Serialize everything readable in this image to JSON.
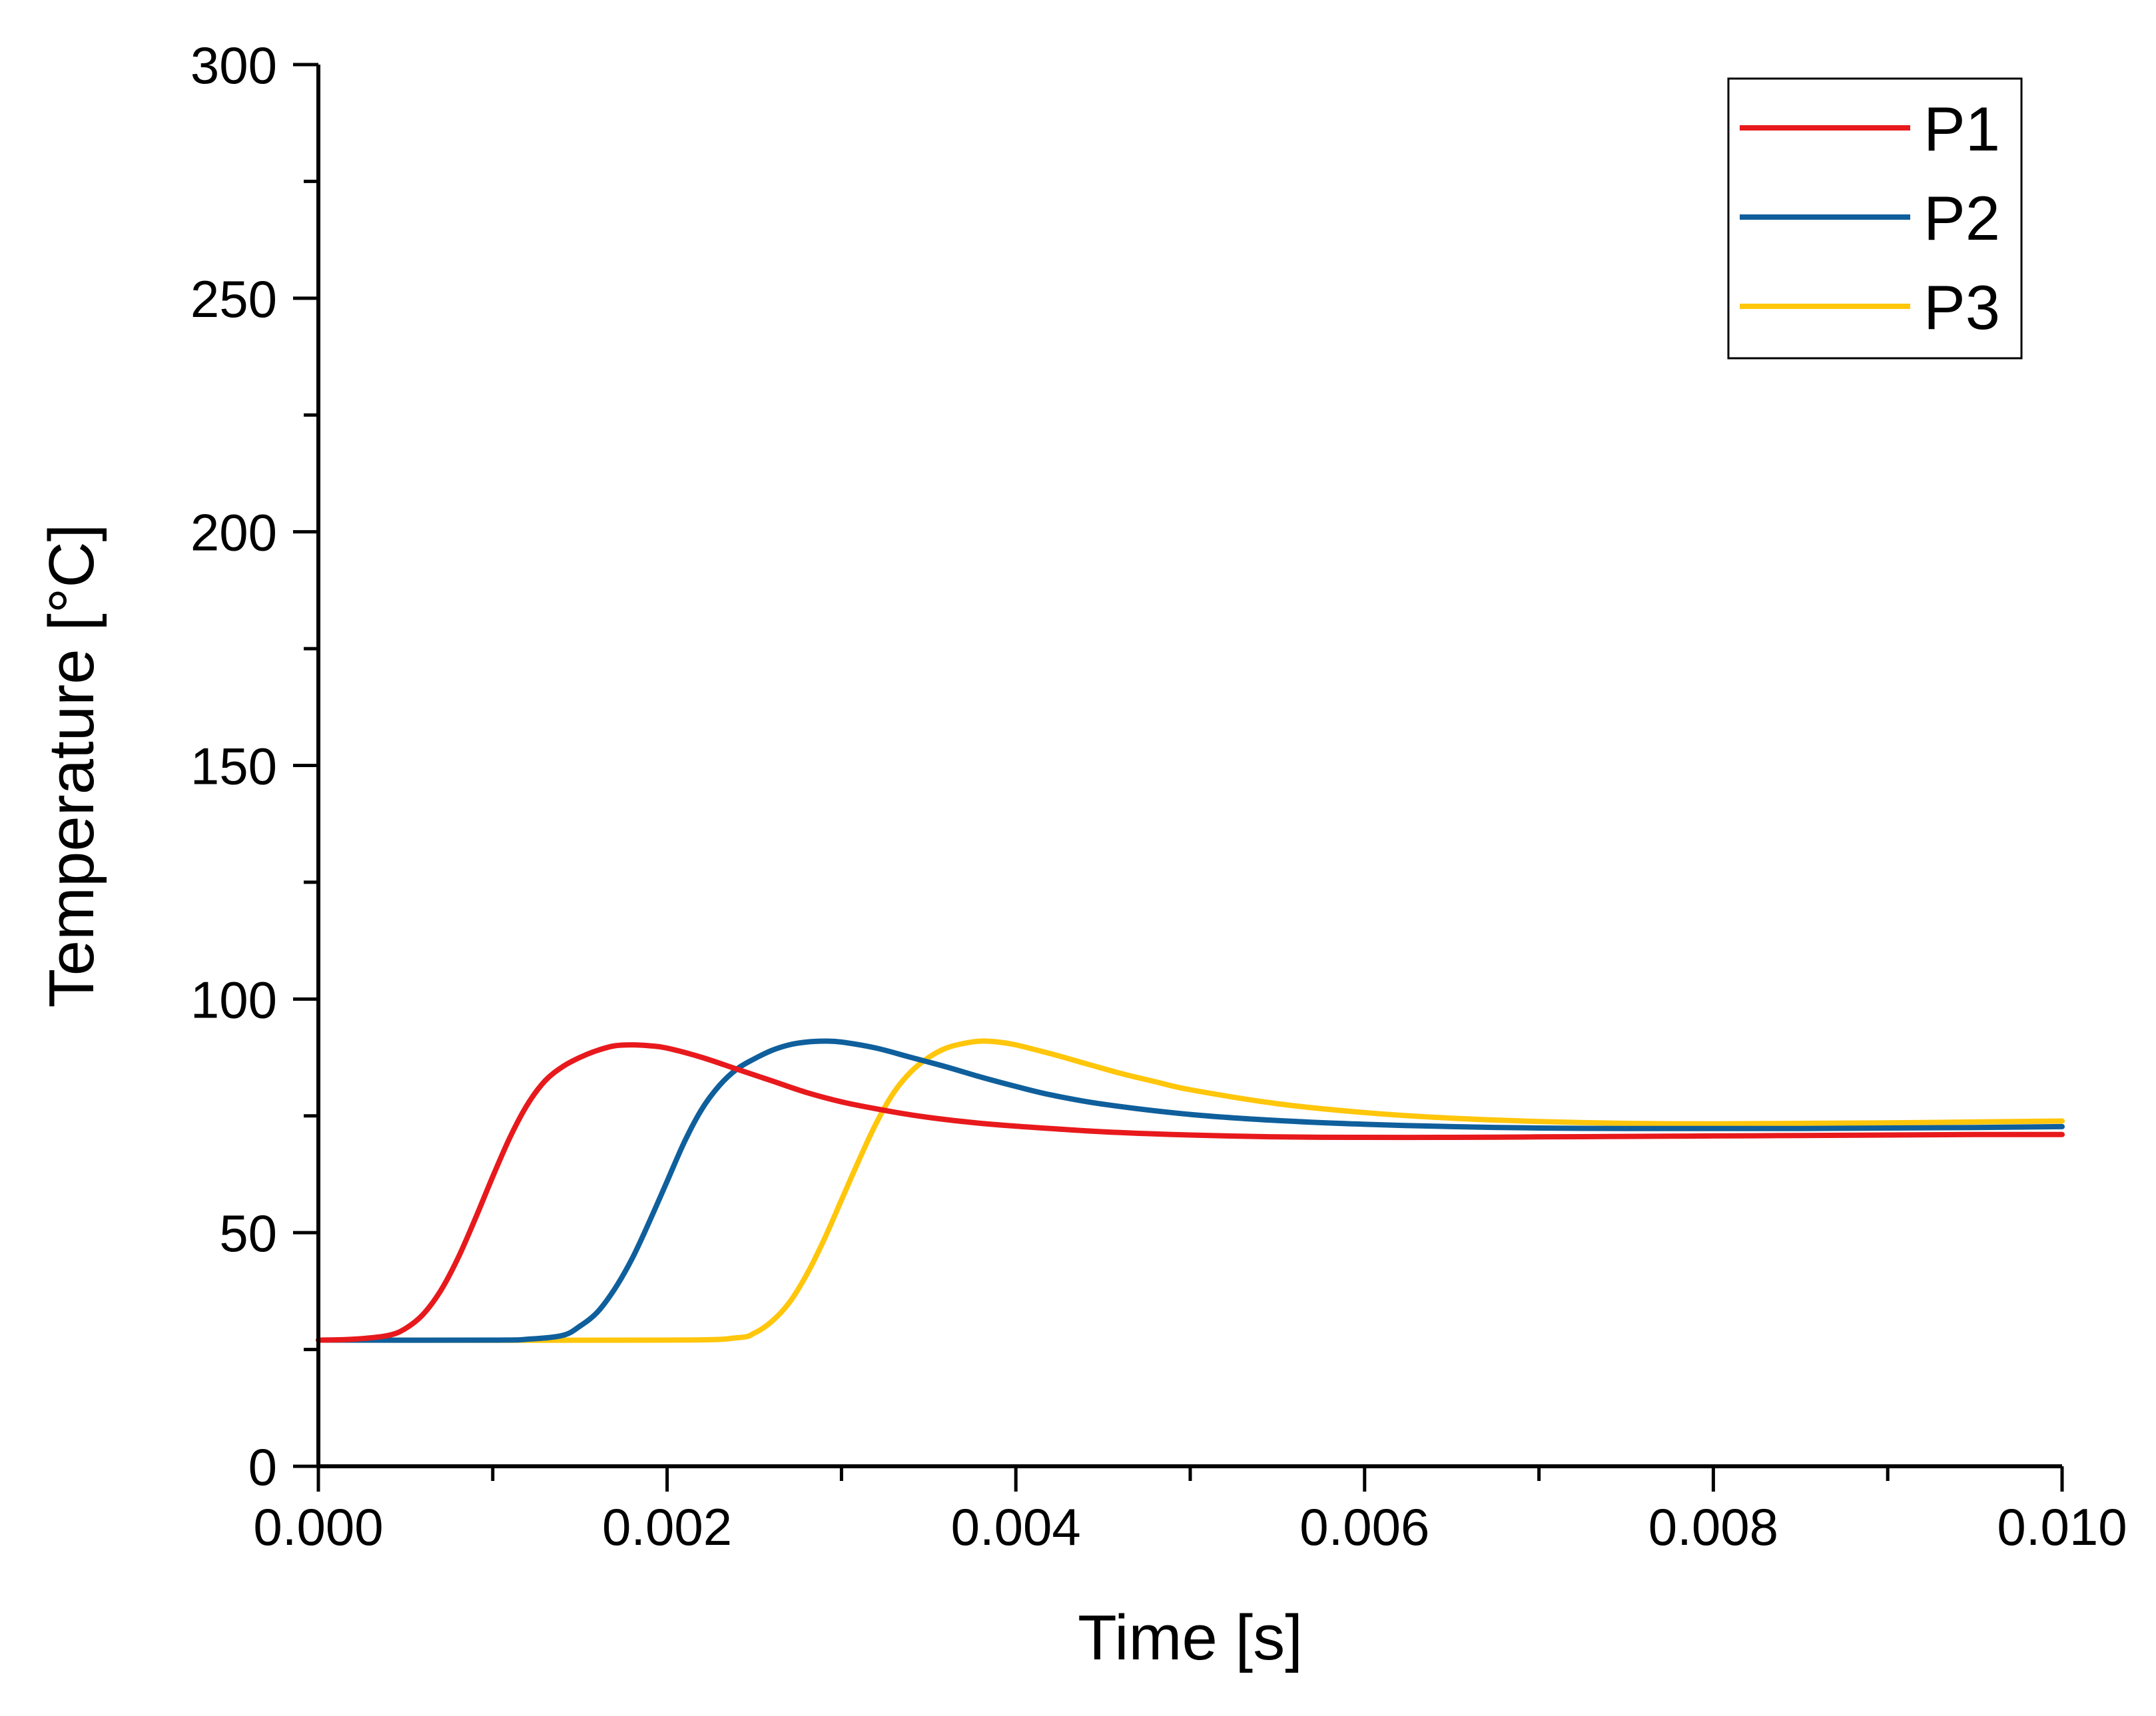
{
  "chart_data": {
    "type": "line",
    "title": "",
    "xlabel": "Time [s]",
    "ylabel": "Temperature [°C]",
    "xlim": [
      0,
      0.01
    ],
    "ylim": [
      0,
      300
    ],
    "x_ticks": [
      0,
      0.002,
      0.004,
      0.006,
      0.008,
      0.01
    ],
    "x_tick_labels": [
      "0.000",
      "0.002",
      "0.004",
      "0.006",
      "0.008",
      "0.010"
    ],
    "x_minor_step": 0.001,
    "y_ticks": [
      0,
      50,
      100,
      150,
      200,
      250,
      300
    ],
    "y_tick_labels": [
      "0",
      "50",
      "100",
      "150",
      "200",
      "250",
      "300"
    ],
    "y_minor_step": 25,
    "grid": false,
    "legend_position": "top-right",
    "series": [
      {
        "name": "P1",
        "color": "#e8191c",
        "x": [
          0,
          0.0002,
          0.0004,
          0.0005,
          0.0006,
          0.0007,
          0.0008,
          0.0009,
          0.001,
          0.0011,
          0.0012,
          0.0013,
          0.0014,
          0.0015,
          0.0016,
          0.0017,
          0.0018,
          0.0019,
          0.002,
          0.0022,
          0.0024,
          0.0026,
          0.0028,
          0.003,
          0.0032,
          0.0034,
          0.0036,
          0.0038,
          0.004,
          0.0045,
          0.005,
          0.0055,
          0.006,
          0.0065,
          0.007,
          0.0075,
          0.008,
          0.0085,
          0.009,
          0.0095,
          0.01
        ],
        "y": [
          27,
          27.2,
          28,
          29.5,
          32.5,
          37.5,
          44.5,
          53,
          62,
          70.5,
          77.5,
          82.5,
          85.5,
          87.5,
          89,
          90,
          90.2,
          90,
          89.5,
          87.5,
          85,
          82.5,
          80,
          78,
          76.5,
          75.2,
          74.2,
          73.4,
          72.8,
          71.6,
          70.9,
          70.5,
          70.4,
          70.4,
          70.5,
          70.6,
          70.7,
          70.8,
          70.9,
          71,
          71
        ]
      },
      {
        "name": "P2",
        "color": "#0f5f9c",
        "x": [
          0,
          0.001,
          0.0012,
          0.0014,
          0.0015,
          0.0016,
          0.0017,
          0.0018,
          0.0019,
          0.002,
          0.0021,
          0.0022,
          0.0023,
          0.0024,
          0.0025,
          0.0026,
          0.0027,
          0.0028,
          0.0029,
          0.003,
          0.0032,
          0.0034,
          0.0036,
          0.0038,
          0.004,
          0.0042,
          0.0045,
          0.005,
          0.0055,
          0.006,
          0.0065,
          0.007,
          0.0075,
          0.008,
          0.0085,
          0.009,
          0.0095,
          0.01
        ],
        "y": [
          27,
          27,
          27.2,
          28,
          30,
          33,
          38,
          44.5,
          52.5,
          61,
          69.5,
          76.5,
          81.5,
          85,
          87.2,
          89,
          90.2,
          90.8,
          91,
          90.8,
          89.5,
          87.5,
          85.5,
          83.3,
          81.3,
          79.5,
          77.5,
          75.3,
          74,
          73.2,
          72.7,
          72.4,
          72.3,
          72.3,
          72.3,
          72.4,
          72.5,
          72.7
        ]
      },
      {
        "name": "P3",
        "color": "#ffc60b",
        "x": [
          0,
          0.002,
          0.0024,
          0.0025,
          0.0026,
          0.0027,
          0.0028,
          0.0029,
          0.003,
          0.0031,
          0.0032,
          0.0033,
          0.0034,
          0.0035,
          0.0036,
          0.0037,
          0.0038,
          0.0039,
          0.004,
          0.0042,
          0.0044,
          0.0046,
          0.0048,
          0.005,
          0.0055,
          0.006,
          0.0065,
          0.007,
          0.0075,
          0.008,
          0.0085,
          0.009,
          0.0095,
          0.01
        ],
        "y": [
          27,
          27,
          27.5,
          28.5,
          31,
          35,
          41,
          48.5,
          57,
          65.5,
          73.5,
          80,
          84.5,
          87.5,
          89.5,
          90.5,
          91,
          90.8,
          90.2,
          88.3,
          86.2,
          84.1,
          82.3,
          80.6,
          77.6,
          75.7,
          74.5,
          73.8,
          73.4,
          73.3,
          73.4,
          73.5,
          73.7,
          73.9
        ]
      }
    ]
  }
}
